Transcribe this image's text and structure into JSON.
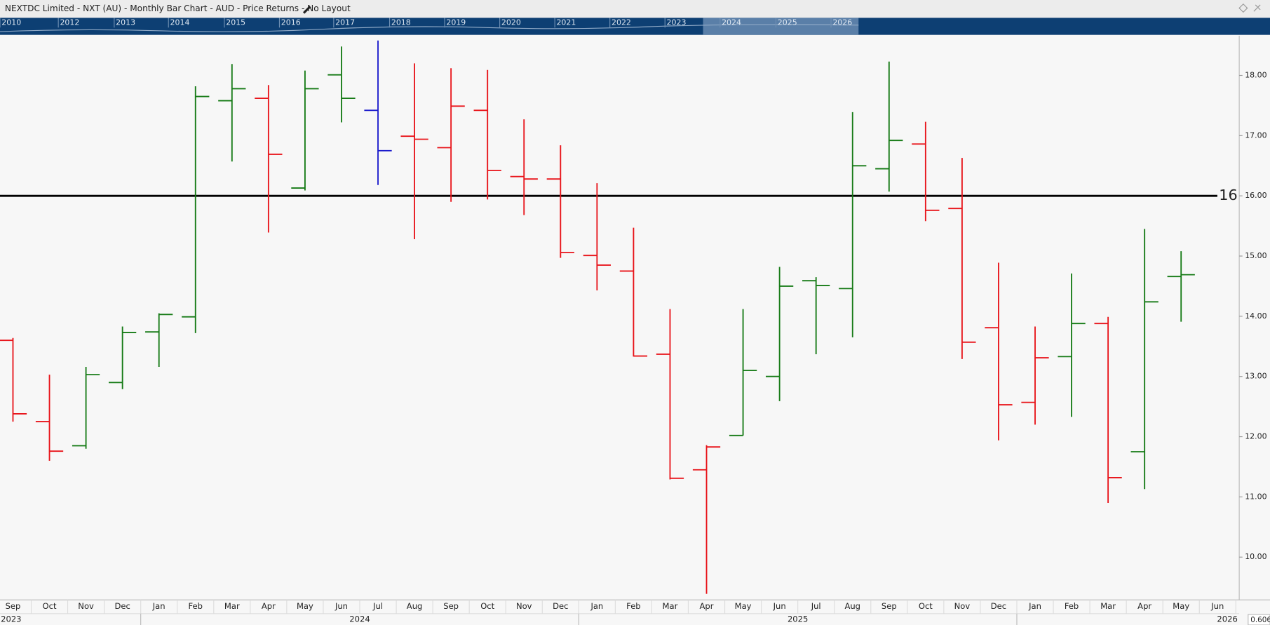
{
  "header": {
    "title": "NEXTDC Limited - NXT (AU) - Monthly Bar Chart - AUD - Price Returns - No Layout"
  },
  "navigator": {
    "years": [
      "2010",
      "2012",
      "2013",
      "2014",
      "2015",
      "2016",
      "2017",
      "2018",
      "2019",
      "2020",
      "2021",
      "2022",
      "2023",
      "2024",
      "2025",
      "2026"
    ]
  },
  "scale_label": "0.606",
  "chart_data": {
    "type": "ohlc",
    "categories": [
      "Sep",
      "Oct",
      "Nov",
      "Dec",
      "Jan",
      "Feb",
      "Mar",
      "Apr",
      "May",
      "Jun",
      "Jul",
      "Aug",
      "Sep",
      "Oct",
      "Nov",
      "Dec",
      "Jan",
      "Feb",
      "Mar",
      "Apr",
      "May",
      "Jun",
      "Jul",
      "Aug",
      "Sep",
      "Oct",
      "Nov",
      "Dec",
      "Jan",
      "Feb",
      "Mar",
      "Apr",
      "May",
      "Jun"
    ],
    "years": [
      "2023",
      "2024",
      "2025",
      "2026"
    ],
    "open": [
      13.6,
      12.25,
      11.85,
      12.9,
      13.74,
      13.99,
      17.58,
      17.62,
      16.13,
      18.01,
      17.42,
      16.99,
      16.8,
      17.42,
      16.32,
      16.28,
      15.01,
      14.75,
      13.37,
      11.45,
      12.02,
      13.0,
      14.59,
      14.46,
      16.45,
      16.86,
      15.79,
      13.81,
      12.57,
      13.33,
      13.88,
      11.75,
      14.66,
      null
    ],
    "high": [
      13.64,
      13.03,
      13.16,
      13.83,
      14.05,
      17.82,
      18.19,
      17.84,
      18.08,
      18.48,
      18.58,
      18.2,
      18.12,
      18.09,
      17.27,
      16.84,
      16.21,
      15.47,
      14.12,
      11.86,
      14.12,
      14.82,
      14.65,
      17.39,
      18.23,
      17.23,
      16.63,
      14.89,
      13.83,
      14.71,
      13.99,
      15.45,
      15.08,
      null
    ],
    "low": [
      12.25,
      11.6,
      11.8,
      12.79,
      13.16,
      13.72,
      16.57,
      15.39,
      16.09,
      17.22,
      16.18,
      15.28,
      15.9,
      15.94,
      15.68,
      14.97,
      14.43,
      13.33,
      11.29,
      9.39,
      12.02,
      12.59,
      13.37,
      13.65,
      16.07,
      15.58,
      13.29,
      11.94,
      12.2,
      12.33,
      10.9,
      11.13,
      13.91,
      null
    ],
    "close": [
      12.38,
      11.76,
      13.03,
      13.73,
      14.03,
      17.65,
      17.78,
      16.69,
      17.78,
      17.62,
      16.75,
      16.94,
      17.49,
      16.42,
      16.28,
      15.06,
      14.85,
      13.34,
      11.31,
      11.83,
      13.1,
      14.5,
      14.51,
      16.5,
      16.92,
      15.76,
      13.57,
      12.53,
      13.31,
      13.88,
      11.32,
      14.24,
      14.69,
      null
    ],
    "colors": [
      "#e8141a",
      "#e8141a",
      "#157a15",
      "#157a15",
      "#157a15",
      "#157a15",
      "#157a15",
      "#e8141a",
      "#157a15",
      "#157a15",
      "#1a1acc",
      "#e8141a",
      "#e8141a",
      "#e8141a",
      "#e8141a",
      "#e8141a",
      "#e8141a",
      "#e8141a",
      "#e8141a",
      "#e8141a",
      "#157a15",
      "#157a15",
      "#157a15",
      "#157a15",
      "#157a15",
      "#e8141a",
      "#e8141a",
      "#e8141a",
      "#e8141a",
      "#157a15",
      "#e8141a",
      "#157a15",
      "#157a15",
      null
    ],
    "ylim": [
      9.29,
      18.66
    ],
    "yticks": [
      {
        "value": 10,
        "label": "10.00"
      },
      {
        "value": 11,
        "label": "11.00"
      },
      {
        "value": 12,
        "label": "12.00"
      },
      {
        "value": 13,
        "label": "13.00"
      },
      {
        "value": 14,
        "label": "14.00"
      },
      {
        "value": 15,
        "label": "15.00"
      },
      {
        "value": 16,
        "label": "16.00"
      },
      {
        "value": 17,
        "label": "17.00"
      },
      {
        "value": 18,
        "label": "18.00"
      }
    ],
    "hline": 16
  }
}
